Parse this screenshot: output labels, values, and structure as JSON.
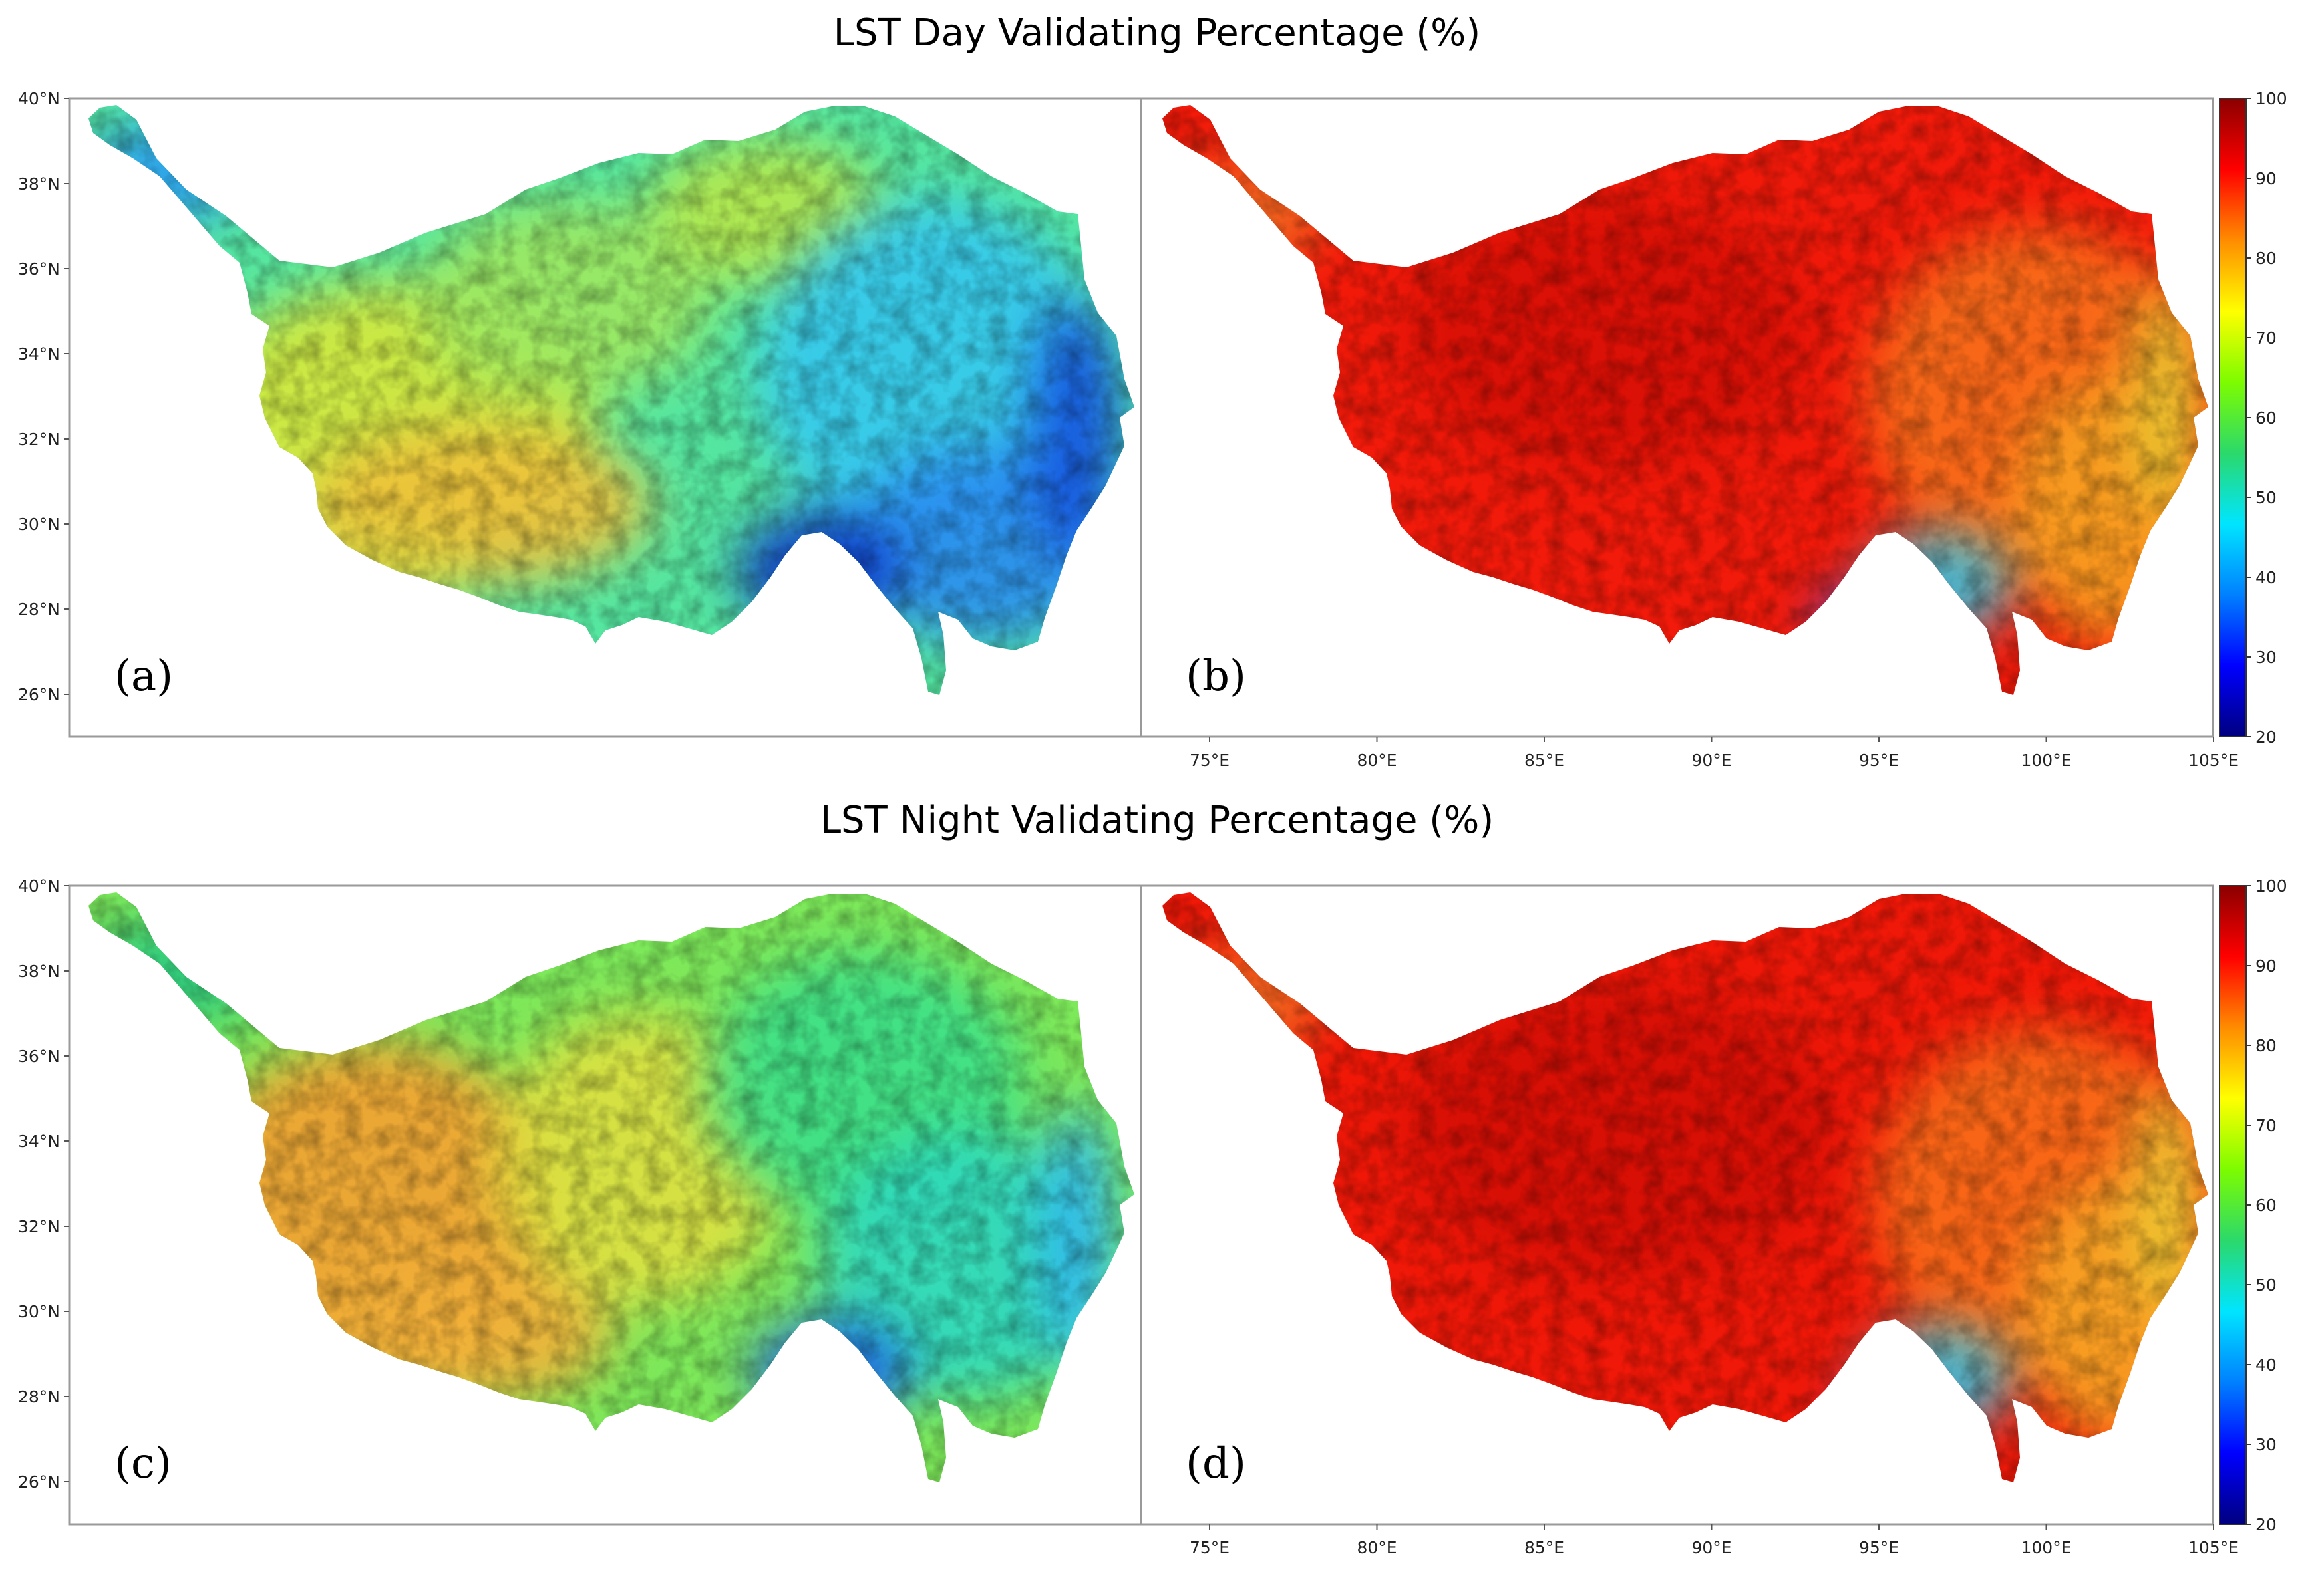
{
  "figure": {
    "top_title": "LST Day Validating Percentage (%)",
    "bottom_title": "LST Night Validating Percentage (%)"
  },
  "axes": {
    "lat_ticks": [
      "40°N",
      "38°N",
      "36°N",
      "34°N",
      "32°N",
      "30°N",
      "28°N",
      "26°N"
    ],
    "lon_ticks": [
      "75°E",
      "80°E",
      "85°E",
      "90°E",
      "95°E",
      "100°E",
      "105°E"
    ]
  },
  "panels": [
    {
      "label": "(a)",
      "scheme": "day_all"
    },
    {
      "label": "(b)",
      "scheme": "day_high"
    },
    {
      "label": "(c)",
      "scheme": "night_all"
    },
    {
      "label": "(d)",
      "scheme": "night_high"
    }
  ],
  "colorbar": {
    "ticks": [
      "100",
      "90",
      "80",
      "70",
      "60",
      "50",
      "40",
      "30",
      "20"
    ],
    "min": 20,
    "max": 100,
    "colors": [
      "#00007f",
      "#0000ff",
      "#0080ff",
      "#00e5ff",
      "#2bd96b",
      "#7dfc00",
      "#ffff00",
      "#ff8c00",
      "#ff0000",
      "#8b0000"
    ]
  }
}
